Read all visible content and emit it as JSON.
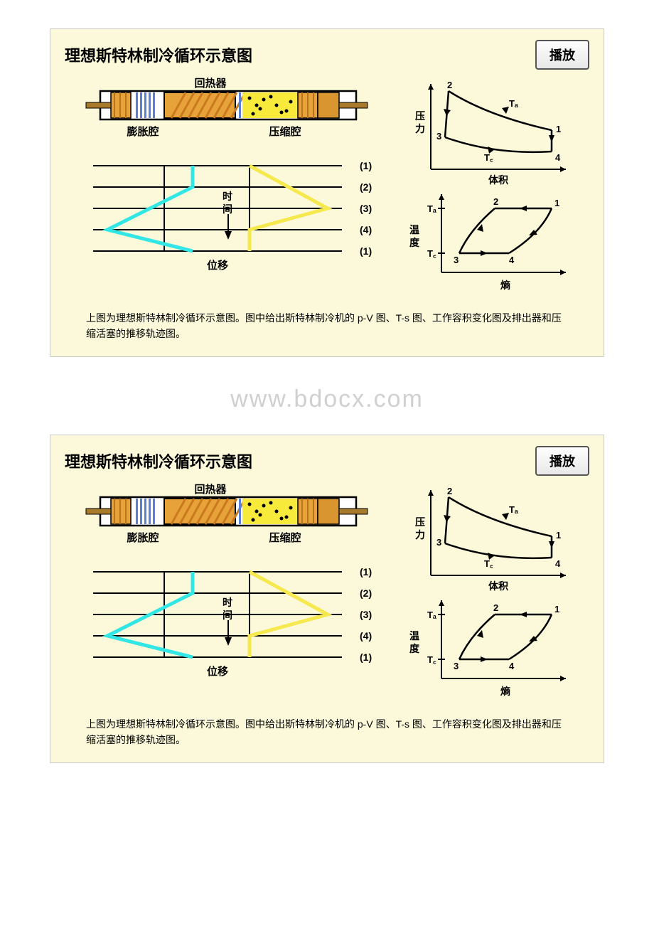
{
  "watermark": "www.bdocx.com",
  "panels": [
    {
      "title": "理想斯特林制冷循环示意图",
      "play_label": "播放",
      "caption": "上图为理想斯特林制冷循环示意图。图中给出斯特林制冷机的 p-V 图、T-s 图、工作容积变化图及排出器和压缩活塞的推移轨迹图。",
      "bg_color": "#fbf9d9",
      "device": {
        "regenerator_label": "回热器",
        "expansion_label": "膨胀腔",
        "compression_label": "压缩腔",
        "outline_color": "#000000",
        "body_fill": "#ffffff",
        "regen_fill": "#e8a23a",
        "regen_hatch": "#c97a1f",
        "fins_fill": "#5b7fd6",
        "piston_fill": "#e8a23a",
        "piston_body": "#d89530",
        "gas_fill": "#f7ea3b",
        "dot_color": "#000000",
        "rod_color": "#a87a2c"
      },
      "displacement": {
        "time_label": "时\n间",
        "x_label": "位移",
        "row_labels": [
          "(1)",
          "(2)",
          "(3)",
          "(4)",
          "(1)"
        ],
        "line_color": "#000000",
        "cyan_line": "#33e6e6",
        "yellow_line": "#f5e94f",
        "line_width": 5
      },
      "pv_chart": {
        "y_label": "压\n力",
        "x_label": "体积",
        "curve_labels": {
          "Ta": "Tₐ",
          "Tc": "T꜀"
        },
        "points": {
          "1": "1",
          "2": "2",
          "3": "3",
          "4": "4"
        },
        "axis_color": "#000000",
        "curve_color": "#000000"
      },
      "ts_chart": {
        "y_label": "温\n度",
        "x_label": "熵",
        "y_ticks": {
          "Ta": "Tₐ",
          "Tc": "T꜀"
        },
        "points": {
          "1": "1",
          "2": "2",
          "3": "3",
          "4": "4"
        },
        "axis_color": "#000000",
        "curve_color": "#000000"
      }
    },
    {
      "title": "理想斯特林制冷循环示意图",
      "play_label": "播放",
      "caption": "上图为理想斯特林制冷循环示意图。图中给出斯特林制冷机的 p-V 图、T-s 图、工作容积变化图及排出器和压缩活塞的推移轨迹图。",
      "bg_color": "#fbf9d9",
      "device": {
        "regenerator_label": "回热器",
        "expansion_label": "膨胀腔",
        "compression_label": "压缩腔",
        "outline_color": "#000000",
        "body_fill": "#ffffff",
        "regen_fill": "#e8a23a",
        "regen_hatch": "#c97a1f",
        "fins_fill": "#5b7fd6",
        "piston_fill": "#e8a23a",
        "piston_body": "#d89530",
        "gas_fill": "#f7ea3b",
        "dot_color": "#000000",
        "rod_color": "#a87a2c"
      },
      "displacement": {
        "time_label": "时\n间",
        "x_label": "位移",
        "row_labels": [
          "(1)",
          "(2)",
          "(3)",
          "(4)",
          "(1)"
        ],
        "line_color": "#000000",
        "cyan_line": "#33e6e6",
        "yellow_line": "#f5e94f",
        "line_width": 5
      },
      "pv_chart": {
        "y_label": "压\n力",
        "x_label": "体积",
        "curve_labels": {
          "Ta": "Tₐ",
          "Tc": "T꜀"
        },
        "points": {
          "1": "1",
          "2": "2",
          "3": "3",
          "4": "4"
        },
        "axis_color": "#000000",
        "curve_color": "#000000"
      },
      "ts_chart": {
        "y_label": "温\n度",
        "x_label": "熵",
        "y_ticks": {
          "Ta": "Tₐ",
          "Tc": "T꜀"
        },
        "points": {
          "1": "1",
          "2": "2",
          "3": "3",
          "4": "4"
        },
        "axis_color": "#000000",
        "curve_color": "#000000"
      }
    }
  ]
}
